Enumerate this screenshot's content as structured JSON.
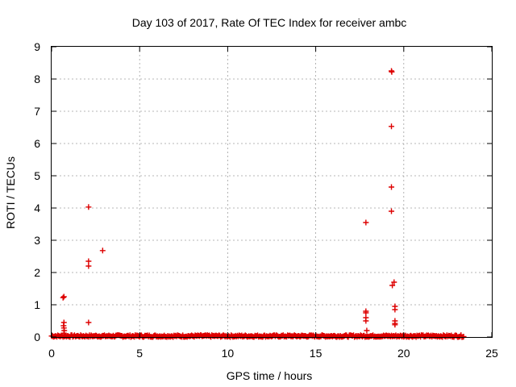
{
  "chart_data": {
    "type": "scatter",
    "title": "Day 103 of 2017, Rate Of TEC Index for receiver ambc",
    "xlabel": "GPS time / hours",
    "ylabel": "ROTI / TECUs",
    "xlim": [
      0,
      25
    ],
    "ylim": [
      0,
      9
    ],
    "xticks": [
      0,
      5,
      10,
      15,
      20,
      25
    ],
    "yticks": [
      0,
      1,
      2,
      3,
      4,
      5,
      6,
      7,
      8,
      9
    ],
    "grid": true,
    "marker": "plus",
    "color": "#dd0000",
    "baseline": {
      "x_start": 0.0,
      "x_end": 23.4,
      "step": 0.05,
      "y_min": 0.0,
      "y_max": 0.06
    },
    "points": [
      [
        0.65,
        1.22
      ],
      [
        0.7,
        1.25
      ],
      [
        0.7,
        0.45
      ],
      [
        0.68,
        0.35
      ],
      [
        0.7,
        0.28
      ],
      [
        0.72,
        0.2
      ],
      [
        0.7,
        0.12
      ],
      [
        2.1,
        4.03
      ],
      [
        2.1,
        2.35
      ],
      [
        2.1,
        2.2
      ],
      [
        2.1,
        0.45
      ],
      [
        2.9,
        2.68
      ],
      [
        17.85,
        3.55
      ],
      [
        17.85,
        0.8
      ],
      [
        17.85,
        0.75
      ],
      [
        17.85,
        0.6
      ],
      [
        17.85,
        0.5
      ],
      [
        17.9,
        0.2
      ],
      [
        19.3,
        8.25
      ],
      [
        19.32,
        8.22
      ],
      [
        19.3,
        6.53
      ],
      [
        19.3,
        4.65
      ],
      [
        19.3,
        3.9
      ],
      [
        19.35,
        1.6
      ],
      [
        19.45,
        1.7
      ],
      [
        19.5,
        0.95
      ],
      [
        19.5,
        0.85
      ],
      [
        19.5,
        0.5
      ],
      [
        19.5,
        0.42
      ],
      [
        19.5,
        0.38
      ]
    ]
  }
}
